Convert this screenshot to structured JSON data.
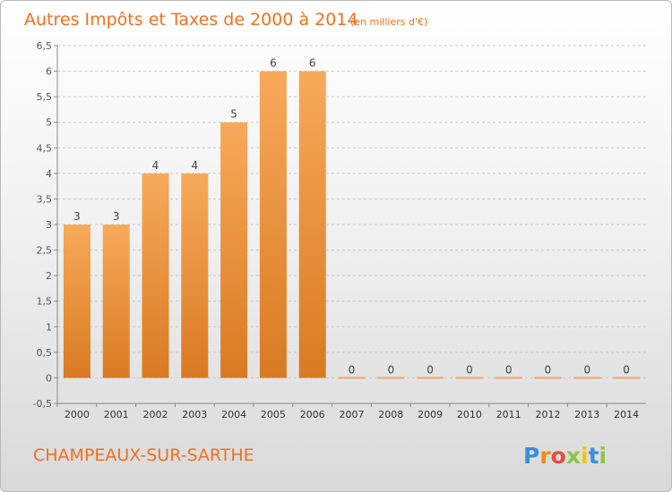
{
  "chart_data": {
    "type": "bar",
    "title": "Autres Impôts et Taxes de 2000 à 2014",
    "subtitle": "(en milliers d'€)",
    "categories": [
      "2000",
      "2001",
      "2002",
      "2003",
      "2004",
      "2005",
      "2006",
      "2007",
      "2008",
      "2009",
      "2010",
      "2011",
      "2012",
      "2013",
      "2014"
    ],
    "values": [
      3,
      3,
      4,
      4,
      5,
      6,
      6,
      0,
      0,
      0,
      0,
      0,
      0,
      0,
      0
    ],
    "ylim": [
      -0.5,
      6.5
    ],
    "yticks": [
      "-0,5",
      "0",
      "0,5",
      "1",
      "1,5",
      "2",
      "2,5",
      "3",
      "3,5",
      "4",
      "4,5",
      "5",
      "5,5",
      "6",
      "6,5"
    ],
    "grid": "y-dashed",
    "colors": {
      "bar_top": "#f7a95a",
      "bar_bottom": "#d97a22",
      "text_accent": "#f07020"
    }
  },
  "footer": {
    "commune": "CHAMPEAUX-SUR-SARTHE",
    "logo_letters": [
      "P",
      "r",
      "o",
      "x",
      "i",
      "t",
      "i"
    ],
    "logo_colors": [
      "#3a8fd8",
      "#f08a1c",
      "#e84c3d",
      "#8dc63f",
      "#f5c400",
      "#3a8fd8",
      "#8dc63f"
    ]
  }
}
